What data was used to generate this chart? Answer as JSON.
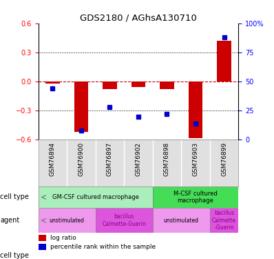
{
  "title": "GDS2180 / AGhsA130710",
  "samples": [
    "GSM76894",
    "GSM76900",
    "GSM76897",
    "GSM76902",
    "GSM76898",
    "GSM76903",
    "GSM76899"
  ],
  "log_ratio": [
    -0.02,
    -0.52,
    -0.08,
    -0.06,
    -0.08,
    -0.58,
    0.42
  ],
  "percentile_rank": [
    44,
    8,
    28,
    20,
    22,
    14,
    88
  ],
  "ylim_left": [
    -0.6,
    0.6
  ],
  "yticks_left": [
    -0.6,
    -0.3,
    0.0,
    0.3,
    0.6
  ],
  "ylim_right": [
    0,
    100
  ],
  "yticks_right": [
    0,
    25,
    50,
    75,
    100
  ],
  "ytick_right_labels": [
    "0",
    "25",
    "50",
    "75",
    "100%"
  ],
  "bar_color_red": "#CC0000",
  "bar_color_blue": "#0000CC",
  "zero_line_color": "#CC0000",
  "cell_types": [
    {
      "label": "GM-CSF cultured macrophage",
      "span": [
        0,
        4
      ],
      "color": "#AAEEBB"
    },
    {
      "label": "M-CSF cultured\nmacrophage",
      "span": [
        4,
        7
      ],
      "color": "#44DD55"
    }
  ],
  "agents": [
    {
      "label": "unstimulated",
      "span": [
        0,
        2
      ],
      "color": "#EE99EE"
    },
    {
      "label": "bacillus\nCalmette-Guerin",
      "span": [
        2,
        4
      ],
      "color": "#DD55DD"
    },
    {
      "label": "unstimulated",
      "span": [
        4,
        6
      ],
      "color": "#EE99EE"
    },
    {
      "label": "bacillus\nCalmette\n-Guerin",
      "span": [
        6,
        7
      ],
      "color": "#DD55DD"
    }
  ],
  "legend_red": "log ratio",
  "legend_blue": "percentile rank within the sample",
  "bar_width": 0.5
}
